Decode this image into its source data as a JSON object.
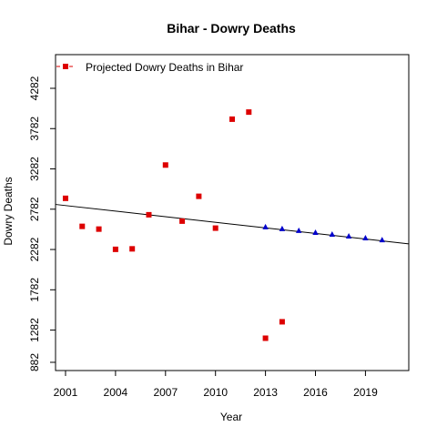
{
  "chart_data": {
    "type": "scatter",
    "title": "Bihar  -  Dowry Deaths",
    "xlabel": "Year",
    "ylabel": "Dowry Deaths",
    "xlim": [
      2000.4,
      2021.6
    ],
    "ylim": [
      780,
      4700
    ],
    "x_ticks": [
      2001,
      2004,
      2007,
      2010,
      2013,
      2016,
      2019
    ],
    "y_ticks": [
      882,
      1282,
      1782,
      2282,
      2782,
      3282,
      3782,
      4282
    ],
    "x_tick_labels": [
      "2001",
      "2004",
      "2007",
      "2010",
      "2013",
      "2016",
      "2019"
    ],
    "y_tick_labels": [
      "882",
      "1282",
      "1782",
      "2282",
      "2782",
      "3282",
      "3782",
      "4282"
    ],
    "legend": {
      "placement": "top-left",
      "entries": [
        "Projected  Dowry Deaths  in  Bihar"
      ]
    },
    "colors": {
      "observed": "#dd0000",
      "projected": "#0000cc",
      "trend": "#000000"
    },
    "series": [
      {
        "name": "Projected  Dowry Deaths  in  Bihar",
        "marker": "square",
        "x": [
          2001,
          2002,
          2003,
          2004,
          2005,
          2006,
          2007,
          2008,
          2009,
          2010,
          2011,
          2012,
          2013,
          2014
        ],
        "y": [
          2917,
          2569,
          2535,
          2284,
          2290,
          2713,
          3330,
          2634,
          2942,
          2547,
          3899,
          3987,
          1181,
          1385
        ]
      },
      {
        "marker": "triangle",
        "x": [
          2013,
          2014,
          2015,
          2016,
          2017,
          2018,
          2019,
          2020
        ],
        "y": [
          2561,
          2538,
          2515,
          2492,
          2469,
          2446,
          2423,
          2400
        ]
      }
    ],
    "trendline": {
      "x": [
        2000.4,
        2021.6
      ],
      "y": [
        2841,
        2352
      ]
    }
  }
}
